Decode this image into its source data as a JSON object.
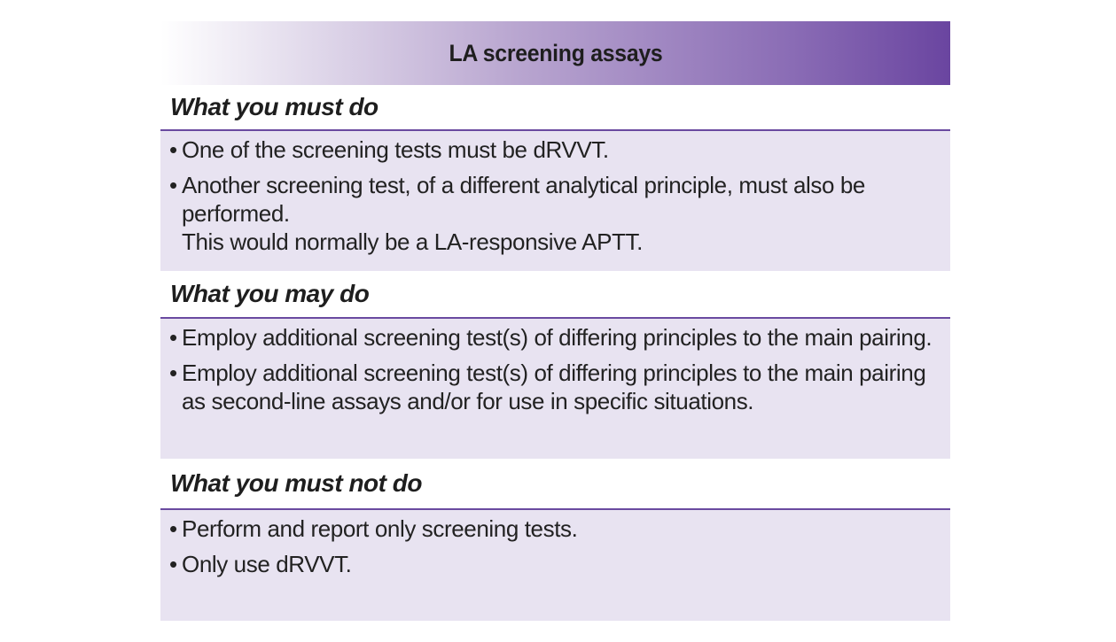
{
  "title": "LA screening assays",
  "sections": [
    {
      "heading": "What you must do",
      "items": [
        "One of the screening tests must be dRVVT.",
        "Another screening test, of a different analytical principle, must also be performed.\nThis would normally be a LA-responsive APTT."
      ]
    },
    {
      "heading": "What you may do",
      "items": [
        "Employ additional screening test(s) of differing principles to the main pairing.",
        "Employ additional screening test(s) of differing principles to the main pairing\nas second-line assays and/or for use in specific situations."
      ]
    },
    {
      "heading": "What you must not do",
      "items": [
        "Perform and report only screening tests.",
        "Only use dRVVT."
      ]
    }
  ],
  "bullet": "•",
  "colors": {
    "header_gradient_end": "#6a45a0",
    "rule": "#6a4aa0",
    "body_fill": "#e8e3f1"
  }
}
